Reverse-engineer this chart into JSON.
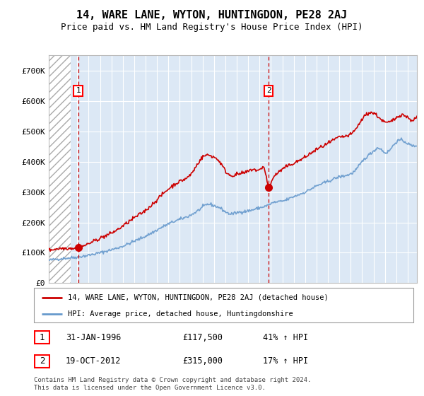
{
  "title": "14, WARE LANE, WYTON, HUNTINGDON, PE28 2AJ",
  "subtitle": "Price paid vs. HM Land Registry's House Price Index (HPI)",
  "ylim": [
    0,
    750000
  ],
  "yticks": [
    0,
    100000,
    200000,
    300000,
    400000,
    500000,
    600000,
    700000
  ],
  "ytick_labels": [
    "£0",
    "£100K",
    "£200K",
    "£300K",
    "£400K",
    "£500K",
    "£600K",
    "£700K"
  ],
  "hpi_color": "#6699cc",
  "price_color": "#cc0000",
  "marker1_date": 1996.08,
  "marker1_price": 117500,
  "marker2_date": 2012.8,
  "marker2_price": 315000,
  "annotation1_label": "1",
  "annotation2_label": "2",
  "legend_line1": "14, WARE LANE, WYTON, HUNTINGDON, PE28 2AJ (detached house)",
  "legend_line2": "HPI: Average price, detached house, Huntingdonshire",
  "table_row1_num": "1",
  "table_row1_date": "31-JAN-1996",
  "table_row1_price": "£117,500",
  "table_row1_hpi": "41% ↑ HPI",
  "table_row2_num": "2",
  "table_row2_date": "19-OCT-2012",
  "table_row2_price": "£315,000",
  "table_row2_hpi": "17% ↑ HPI",
  "footer": "Contains HM Land Registry data © Crown copyright and database right 2024.\nThis data is licensed under the Open Government Licence v3.0.",
  "bg_color": "#dce8f5",
  "hatch_color": "#c5d5e5",
  "xlim_start": 1993.5,
  "xlim_end": 2025.8,
  "hatch_end": 1995.4
}
